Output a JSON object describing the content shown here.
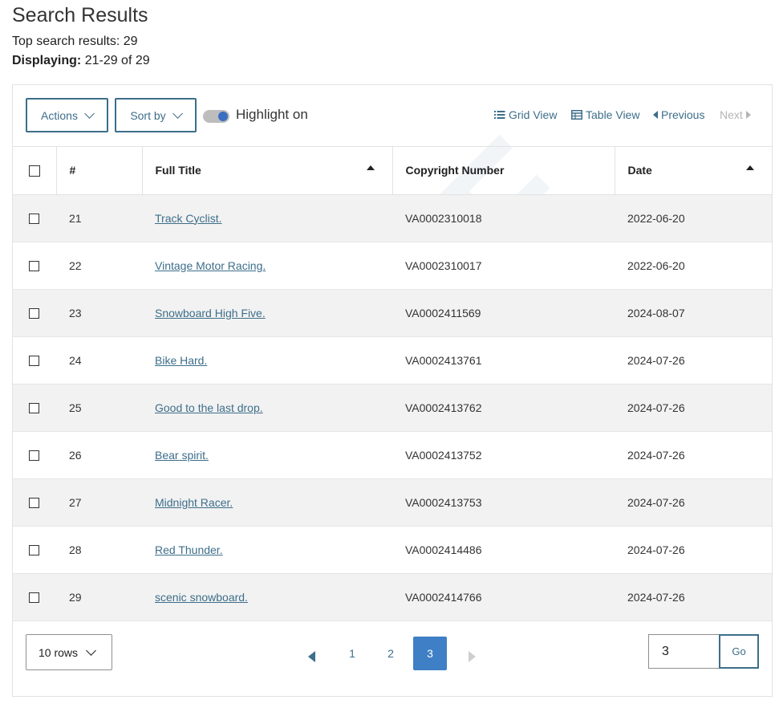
{
  "header": {
    "title": "Search Results",
    "top_results_text": "Top search results: 29",
    "displaying_label": "Displaying:",
    "displaying_value": "21-29 of 29"
  },
  "toolbar": {
    "actions_label": "Actions",
    "sortby_label": "Sort by",
    "highlight_label": "Highlight on",
    "highlight_on": true,
    "grid_view_label": "Grid View",
    "table_view_label": "Table View",
    "previous_label": "Previous",
    "next_label": "Next"
  },
  "watermark": {
    "text": "123RF"
  },
  "table": {
    "headers": {
      "num": "#",
      "title": "Full Title",
      "copyright": "Copyright Number",
      "date": "Date"
    },
    "rows": [
      {
        "num": "21",
        "title": "Track Cyclist.",
        "copyright": "VA0002310018",
        "date": "2022-06-20"
      },
      {
        "num": "22",
        "title": "Vintage Motor Racing.",
        "copyright": "VA0002310017",
        "date": "2022-06-20"
      },
      {
        "num": "23",
        "title": "Snowboard High Five.",
        "copyright": "VA0002411569",
        "date": "2024-08-07"
      },
      {
        "num": "24",
        "title": "Bike Hard.",
        "copyright": "VA0002413761",
        "date": "2024-07-26"
      },
      {
        "num": "25",
        "title": "Good to the last drop.",
        "copyright": "VA0002413762",
        "date": "2024-07-26"
      },
      {
        "num": "26",
        "title": "Bear spirit.",
        "copyright": "VA0002413752",
        "date": "2024-07-26"
      },
      {
        "num": "27",
        "title": "Midnight Racer.",
        "copyright": "VA0002413753",
        "date": "2024-07-26"
      },
      {
        "num": "28",
        "title": "Red Thunder.",
        "copyright": "VA0002414486",
        "date": "2024-07-26"
      },
      {
        "num": "29",
        "title": "scenic snowboard.",
        "copyright": "VA0002414766",
        "date": "2024-07-26"
      }
    ]
  },
  "pagination": {
    "rows_label": "10 rows",
    "pages": [
      "1",
      "2",
      "3"
    ],
    "current_page": "3",
    "page_input_value": "3",
    "go_label": "Go"
  },
  "colors": {
    "accent": "#3d6e8a",
    "active_page": "#3f7fc5",
    "row_stripe": "#f2f2f2"
  }
}
